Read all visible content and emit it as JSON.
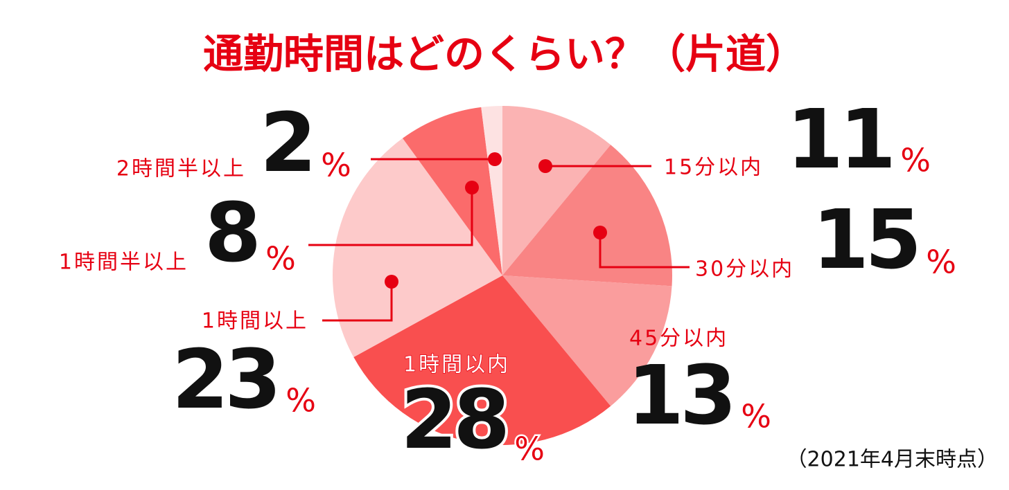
{
  "chart_data": {
    "type": "pie",
    "title": "通勤時間はどのくらい？（片道）",
    "categories": [
      "15分以内",
      "30分以内",
      "45分以内",
      "1時間以内",
      "1時間以上",
      "1時間半以上",
      "2時間半以上"
    ],
    "values": [
      11,
      15,
      13,
      28,
      23,
      8,
      2
    ],
    "unit": "%",
    "colors": [
      "#fbb3b3",
      "#f98484",
      "#fa9d9d",
      "#f94f4f",
      "#fdcaca",
      "#fb6b6b",
      "#fde2e2"
    ],
    "annotation": "（2021年4月末時点）"
  }
}
